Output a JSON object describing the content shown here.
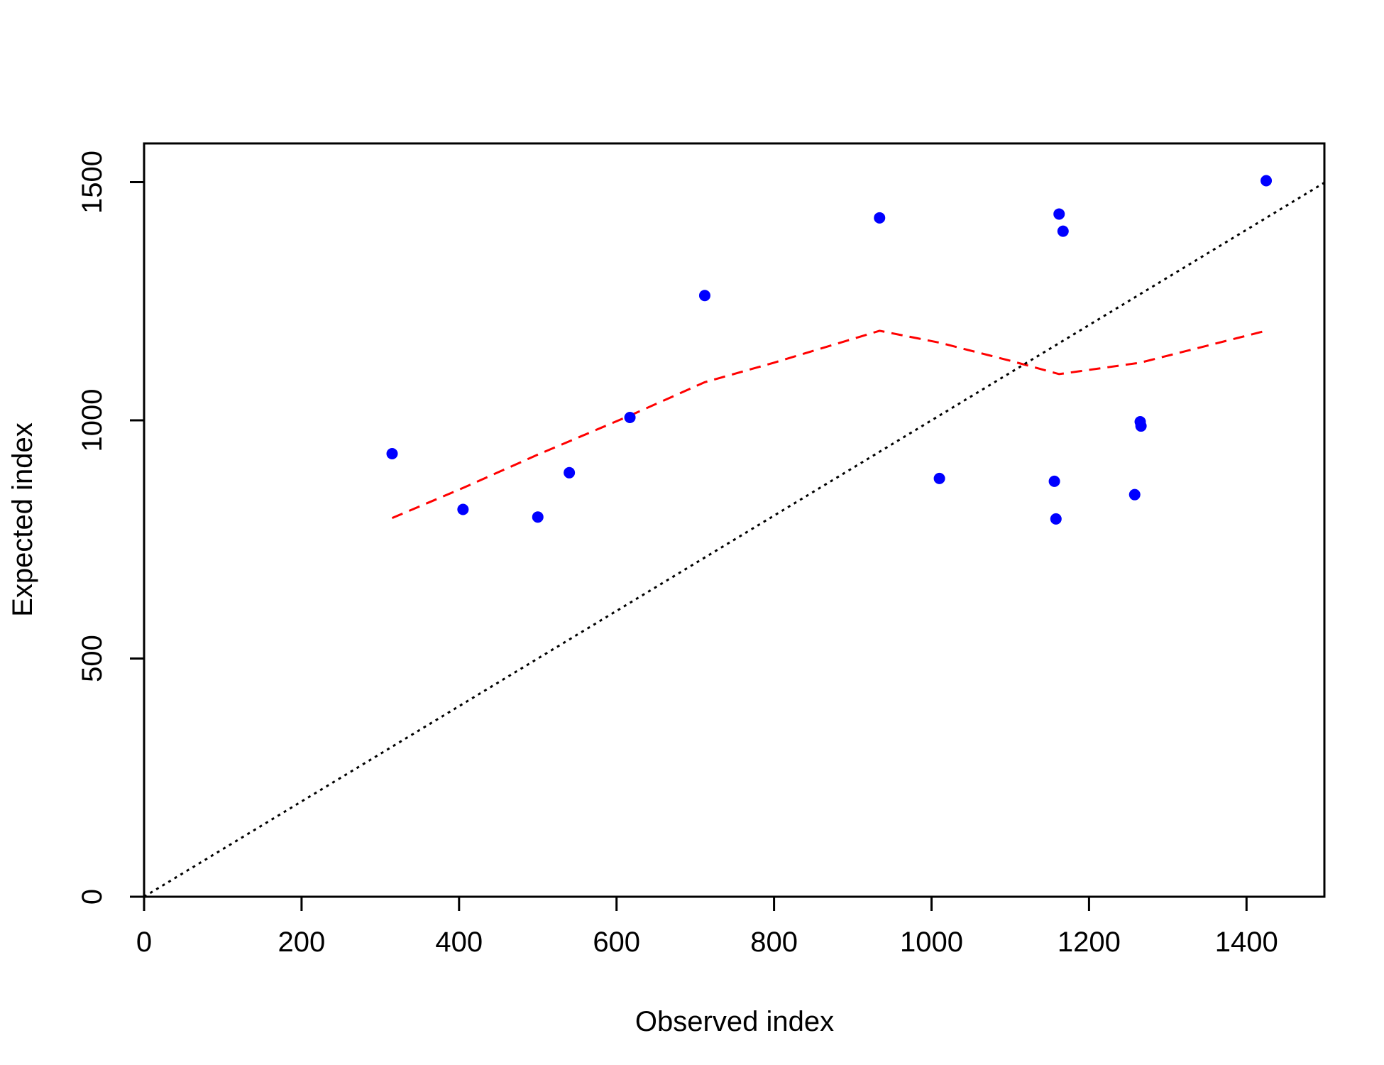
{
  "chart_data": {
    "type": "scatter",
    "xlabel": "Observed index",
    "ylabel": "Expected index",
    "xlim": [
      0,
      1500
    ],
    "ylim": [
      0,
      1580
    ],
    "x_ticks": [
      0,
      200,
      400,
      600,
      800,
      1000,
      1200,
      1400
    ],
    "y_ticks": [
      0,
      500,
      1000,
      1500
    ],
    "grid": false,
    "series": [
      {
        "kind": "points",
        "color": "#0000ff",
        "points": [
          {
            "x": 315,
            "y": 930
          },
          {
            "x": 405,
            "y": 813
          },
          {
            "x": 500,
            "y": 797
          },
          {
            "x": 540,
            "y": 890
          },
          {
            "x": 617,
            "y": 1006
          },
          {
            "x": 712,
            "y": 1262
          },
          {
            "x": 934,
            "y": 1425
          },
          {
            "x": 1010,
            "y": 878
          },
          {
            "x": 1156,
            "y": 872
          },
          {
            "x": 1158,
            "y": 793
          },
          {
            "x": 1162,
            "y": 1433
          },
          {
            "x": 1167,
            "y": 1397
          },
          {
            "x": 1258,
            "y": 844
          },
          {
            "x": 1265,
            "y": 997
          },
          {
            "x": 1266,
            "y": 988
          },
          {
            "x": 1425,
            "y": 1503
          }
        ]
      },
      {
        "kind": "line",
        "style": "dashed",
        "color": "#ff0000",
        "points": [
          {
            "x": 315,
            "y": 795
          },
          {
            "x": 405,
            "y": 858
          },
          {
            "x": 500,
            "y": 928
          },
          {
            "x": 617,
            "y": 1010
          },
          {
            "x": 712,
            "y": 1080
          },
          {
            "x": 800,
            "y": 1121
          },
          {
            "x": 934,
            "y": 1188
          },
          {
            "x": 1010,
            "y": 1163
          },
          {
            "x": 1100,
            "y": 1125
          },
          {
            "x": 1162,
            "y": 1097
          },
          {
            "x": 1265,
            "y": 1121
          },
          {
            "x": 1420,
            "y": 1186
          }
        ]
      },
      {
        "kind": "line",
        "style": "dotted",
        "color": "#000000",
        "points": [
          {
            "x": 0,
            "y": 0
          },
          {
            "x": 1500,
            "y": 1500
          }
        ]
      }
    ]
  }
}
